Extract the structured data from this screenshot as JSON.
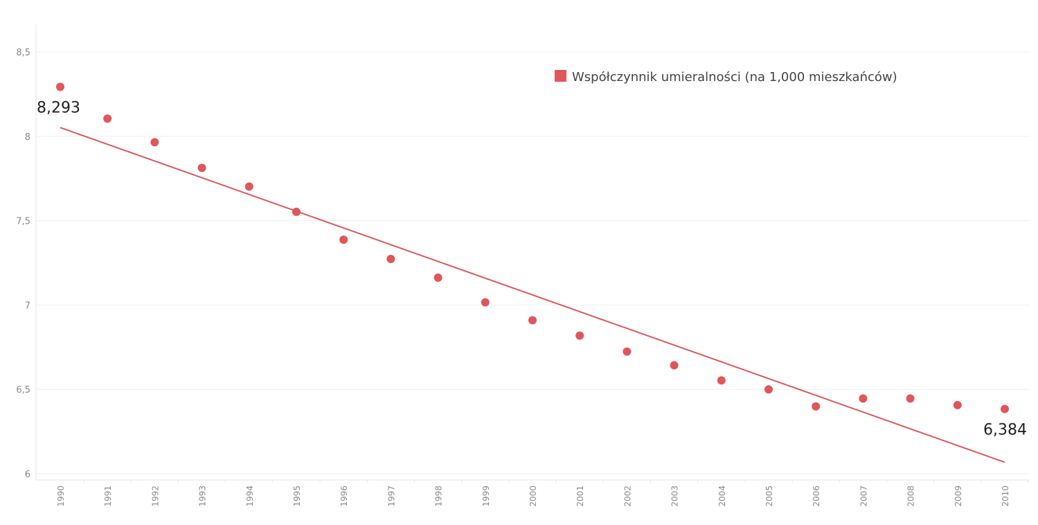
{
  "chart_data": {
    "type": "scatter",
    "title": "",
    "xlabel": "",
    "ylabel": "",
    "categories": [
      "1990",
      "1991",
      "1992",
      "1993",
      "1994",
      "1995",
      "1996",
      "1997",
      "1998",
      "1999",
      "2000",
      "2001",
      "2002",
      "2003",
      "2004",
      "2005",
      "2006",
      "2007",
      "2008",
      "2009",
      "2010"
    ],
    "y_ticks": [
      "6",
      "6,5",
      "7",
      "7,5",
      "8",
      "8,5"
    ],
    "ylim": [
      6,
      8.7
    ],
    "grid": true,
    "legend_position": "top-right",
    "series": [
      {
        "name": "Współczynnik umieralności (na 1,000 mieszkańców)",
        "color": "#e05759",
        "values": [
          8.293,
          8.105,
          7.965,
          7.813,
          7.702,
          7.552,
          7.387,
          7.273,
          7.162,
          7.016,
          6.91,
          6.819,
          6.724,
          6.643,
          6.553,
          6.5,
          6.399,
          6.446,
          6.446,
          6.407,
          6.384
        ]
      }
    ],
    "trend_line": {
      "color": "#e05759",
      "start_value": 8.052,
      "end_value": 6.068
    },
    "data_labels": [
      {
        "category": "1990",
        "text": "8,293"
      },
      {
        "category": "2010",
        "text": "6,384"
      }
    ]
  }
}
